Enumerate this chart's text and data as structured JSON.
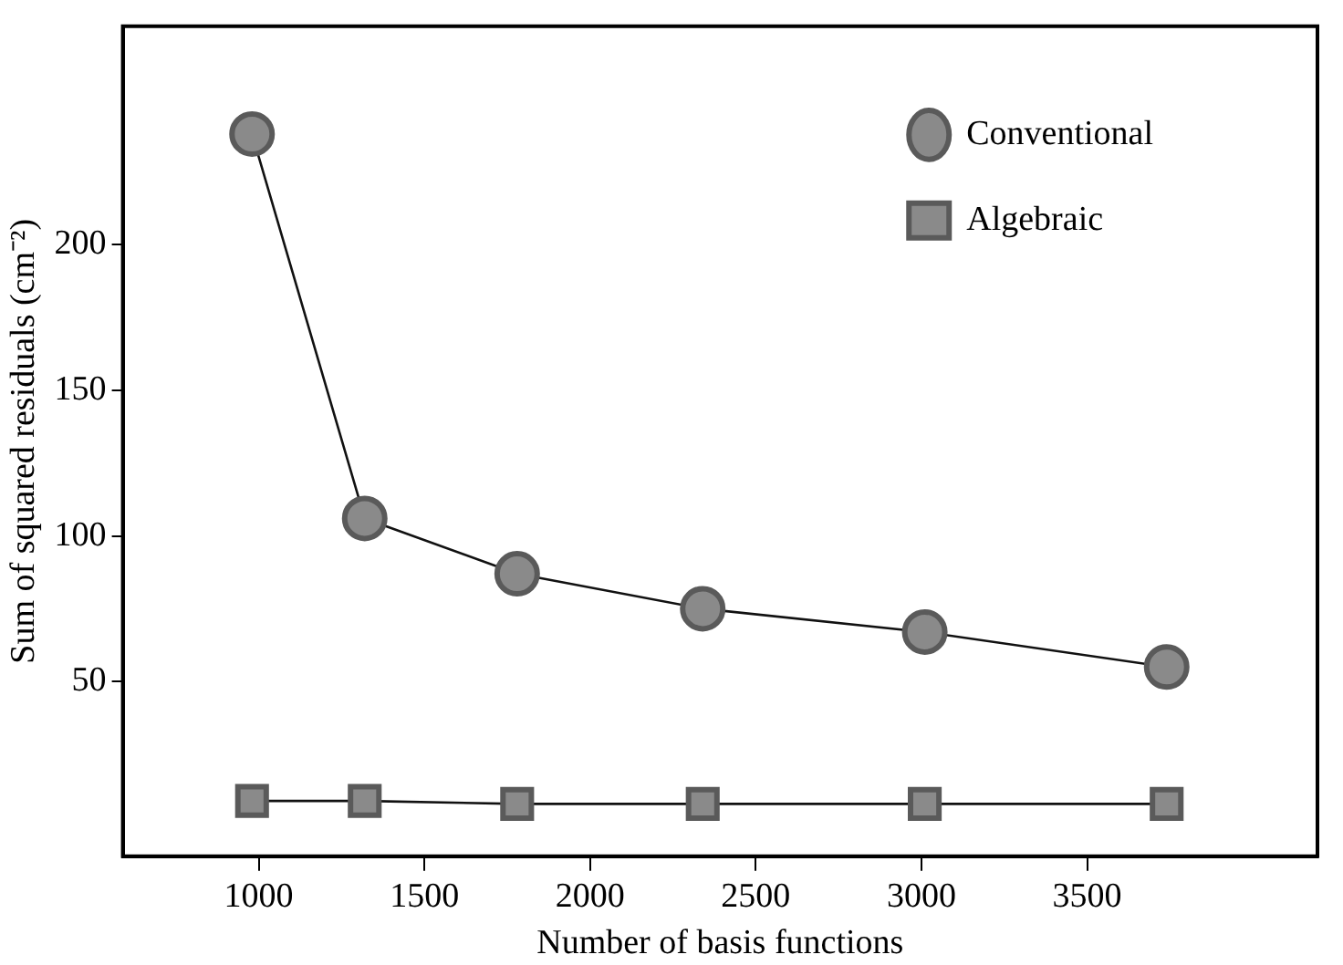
{
  "chart_data": {
    "type": "line",
    "xlabel": "Number of basis functions",
    "ylabel": "Sum of squared residuals (cm⁻²)",
    "xlim": [
      590,
      4195
    ],
    "xticks": [
      1000,
      1500,
      2000,
      2500,
      3000,
      3500
    ],
    "ylim": [
      -10,
      275
    ],
    "yticks": [
      50,
      100,
      150,
      200
    ],
    "grid": false,
    "legend": "top right",
    "series": [
      {
        "name": "Conventional",
        "color": "#8a8a8a",
        "marker": "circle",
        "x": [
          980,
          1320,
          1780,
          2340,
          3010,
          3740
        ],
        "values": [
          238,
          106,
          87,
          75,
          67,
          55
        ]
      },
      {
        "name": "Algebraic",
        "color": "#8a8a8a",
        "marker": "square",
        "x": [
          980,
          1320,
          1780,
          2340,
          3010,
          3740
        ],
        "values": [
          9,
          9,
          8,
          8,
          8,
          8
        ]
      }
    ]
  }
}
